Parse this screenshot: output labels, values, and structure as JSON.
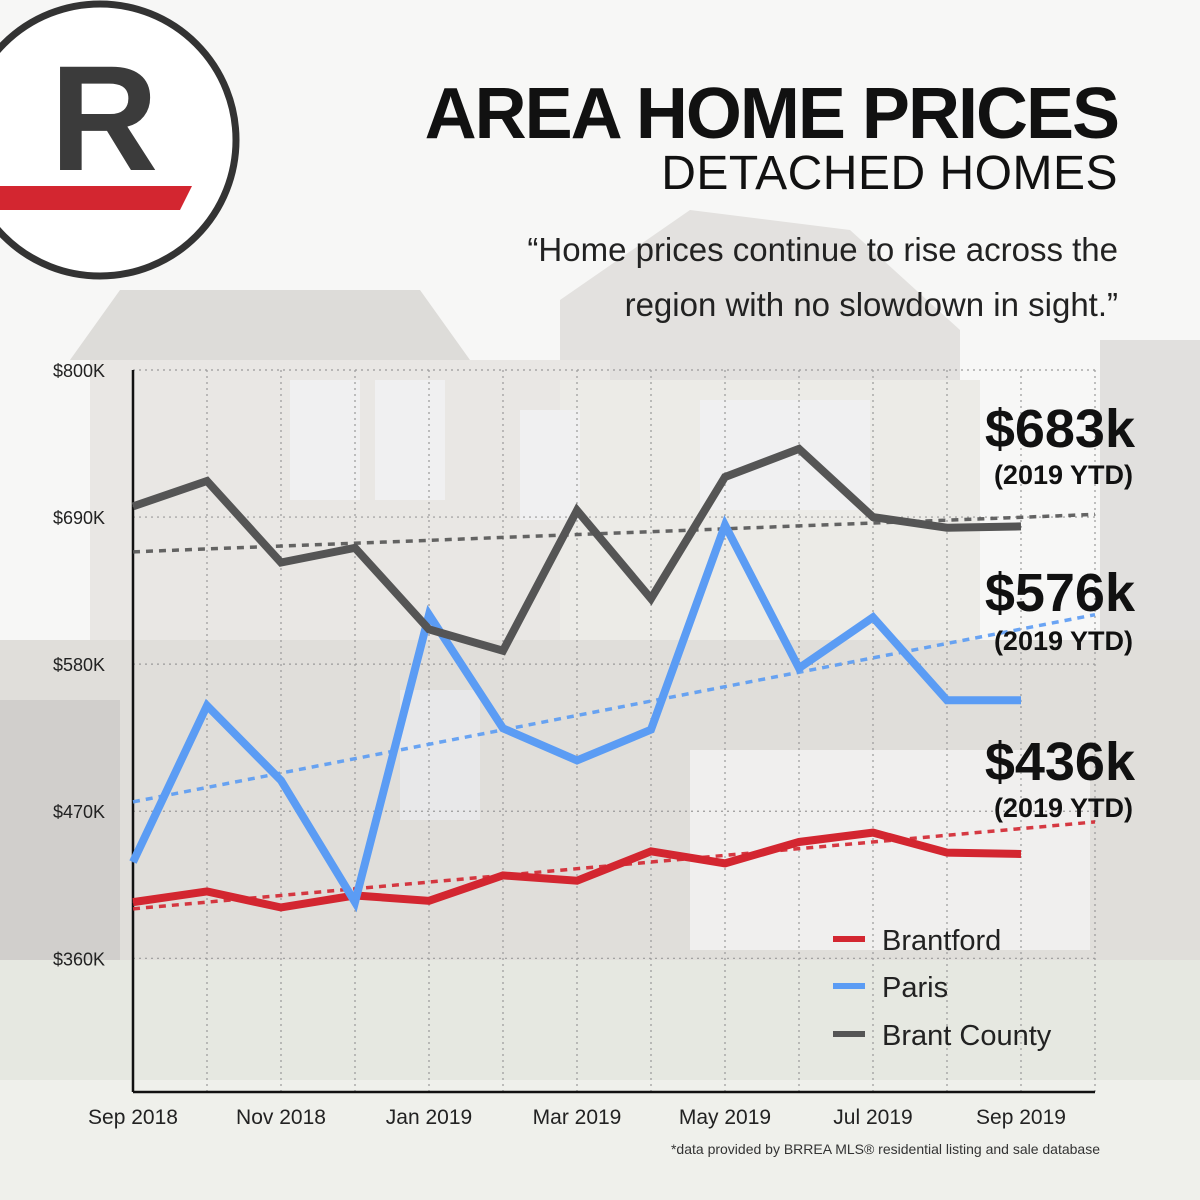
{
  "header": {
    "title": "AREA HOME PRICES",
    "subtitle": "DETACHED HOMES",
    "quote_line1": "“Home prices continue to rise across the",
    "quote_line2": "region with no slowdown in sight.”"
  },
  "logo": {
    "letter": "R",
    "accent_color": "#d32630",
    "ring_color": "#333333"
  },
  "footnote": "*data provided by BRREA MLS® residential listing and sale database",
  "callouts": [
    {
      "series": "Brant County",
      "value": "$683k",
      "note": "(2019 YTD)"
    },
    {
      "series": "Paris",
      "value": "$576k",
      "note": "(2019 YTD)"
    },
    {
      "series": "Brantford",
      "value": "$436k",
      "note": "(2019 YTD)"
    }
  ],
  "chart_data": {
    "type": "line",
    "x": [
      "Sep 2018",
      "Oct 2018",
      "Nov 2018",
      "Dec 2018",
      "Jan 2019",
      "Feb 2019",
      "Mar 2019",
      "Apr 2019",
      "May 2019",
      "Jun 2019",
      "Jul 2019",
      "Aug 2019",
      "Sep 2019"
    ],
    "x_tick_labels": [
      "Sep 2018",
      "Nov 2018",
      "Jan 2019",
      "Mar 2019",
      "May 2019",
      "Jul 2019",
      "Sep 2019"
    ],
    "y_tick_labels": [
      "$800K",
      "$690K",
      "$580K",
      "$470K",
      "$360K"
    ],
    "y_ticks": [
      800,
      690,
      580,
      470,
      360
    ],
    "ylim": [
      260,
      800
    ],
    "grid": true,
    "legend_position": "bottom-right",
    "series": [
      {
        "name": "Brantford",
        "color": "#d32630",
        "values": [
          402,
          410,
          398,
          407,
          403,
          422,
          418,
          440,
          431,
          447,
          454,
          439,
          438
        ],
        "trend": [
          397,
          462
        ]
      },
      {
        "name": "Paris",
        "color": "#5b9cf4",
        "values": [
          432,
          549,
          493,
          402,
          617,
          532,
          508,
          531,
          684,
          577,
          615,
          553,
          553
        ],
        "trend": [
          477,
          617
        ]
      },
      {
        "name": "Brant County",
        "color": "#555555",
        "values": [
          698,
          717,
          656,
          667,
          606,
          590,
          695,
          629,
          720,
          741,
          690,
          682,
          683
        ],
        "trend": [
          664,
          692
        ]
      }
    ]
  }
}
